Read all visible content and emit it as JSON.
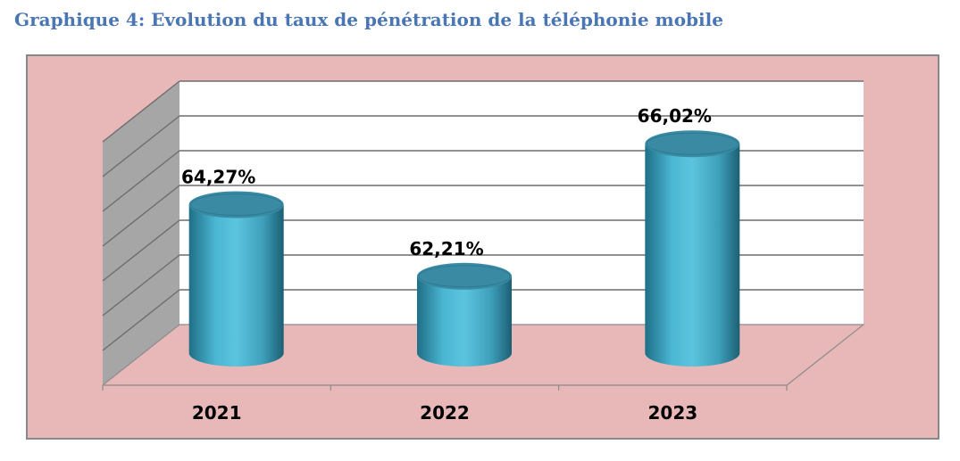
{
  "title": "Graphique 4: Evolution du taux de pénétration de la téléphonie mobile",
  "colors": {
    "title": "#4a76b4",
    "frame_background": "#e8b8b8",
    "plot_background": "#ffffff",
    "side_wall": "#a6a6a6",
    "floor": "#e8b8b8",
    "bar": "#4bb6d3",
    "bar_dark": "#1f6f86",
    "bar_top": "#3a8aa3"
  },
  "chart_data": {
    "type": "bar",
    "style": "3d-cylinder",
    "categories": [
      "2021",
      "2022",
      "2023"
    ],
    "values": [
      64.27,
      62.21,
      66.02
    ],
    "data_labels": [
      "64,27%",
      "62,21%",
      "66,02%"
    ],
    "unit": "%",
    "title": "",
    "xlabel": "",
    "ylabel": "",
    "ylim": [
      60,
      67
    ],
    "grid": true,
    "legend": "none",
    "y_tick_labels_visible": false
  }
}
